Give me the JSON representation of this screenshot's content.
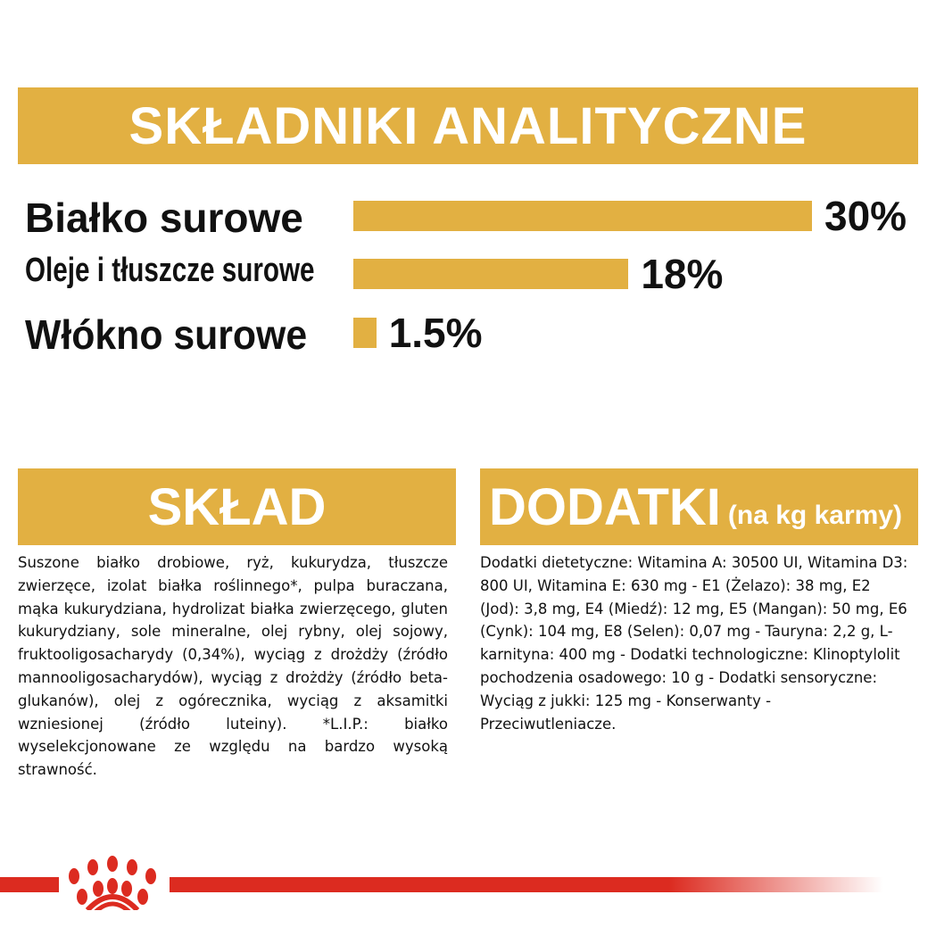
{
  "header": {
    "title": "SKŁADNIKI ANALITYCZNE"
  },
  "chart_data": {
    "type": "bar",
    "orientation": "horizontal",
    "categories": [
      "Białko surowe",
      "Oleje i tłuszcze surowe",
      "Włókno surowe"
    ],
    "values": [
      30,
      18,
      1.5
    ],
    "data_labels": [
      "30%",
      "18%",
      "1.5%"
    ],
    "unit": "%",
    "xlim": [
      0,
      30
    ],
    "grid": false,
    "bar_color": "#e2b042"
  },
  "composition": {
    "title": "SKŁAD",
    "text": "Suszone białko drobiowe, ryż, kukurydza, tłuszcze zwierzęce, izolat białka roślinnego*, pulpa buraczana, mąka kukurydziana, hydrolizat białka zwierzęcego, gluten kukurydziany, sole mineralne, olej rybny, olej sojowy, fruktooligosacharydy (0,34%), wyciąg z drożdży (źródło mannooligosacharydów), wyciąg z drożdży (źródło beta-glukanów), olej z ogórecznika, wyciąg z aksamitki wzniesionej (źródło luteiny). *L.I.P.: białko wyselekcjonowane ze względu na bardzo wysoką strawność."
  },
  "additives": {
    "title": "DODATKI",
    "subtitle": "(na kg karmy)",
    "text": "Dodatki dietetyczne: Witamina A: 30500 UI, Witamina D3: 800 UI, Witamina E: 630 mg - E1 (Żelazo): 38 mg, E2 (Jod): 3,8 mg, E4 (Miedź): 12 mg, E5 (Mangan): 50 mg, E6 (Cynk): 104 mg, E8 (Selen): 0,07 mg - Tauryna: 2,2 g, L-karnityna: 400 mg - Dodatki technologiczne: Klinoptylolit pochodzenia osadowego: 10 g - Dodatki sensoryczne: Wyciąg z jukki: 125 mg - Konserwanty - Przeciwutleniacze."
  },
  "colors": {
    "accent": "#e2b042",
    "brand_red": "#dc2b20"
  },
  "footer": {
    "logo_icon": "royal-canin-crown-paw-icon"
  }
}
